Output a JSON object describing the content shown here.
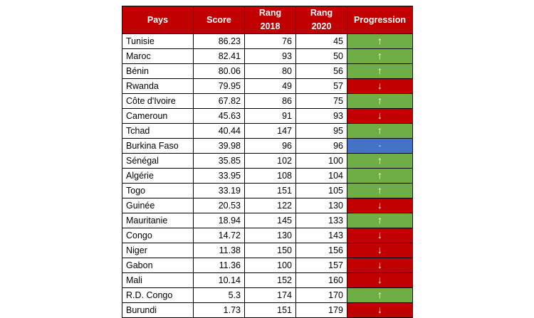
{
  "headers": [
    "Pays",
    "Score",
    "Rang 2018",
    "Rang 2020",
    "Progression"
  ],
  "rows": [
    {
      "pays": "Tunisie",
      "score": "86.23",
      "r2018": "76",
      "r2020": "45",
      "trend": "up"
    },
    {
      "pays": "Maroc",
      "score": "82.41",
      "r2018": "93",
      "r2020": "50",
      "trend": "up"
    },
    {
      "pays": "Bénin",
      "score": "80.06",
      "r2018": "80",
      "r2020": "56",
      "trend": "up"
    },
    {
      "pays": "Rwanda",
      "score": "79.95",
      "r2018": "49",
      "r2020": "57",
      "trend": "down"
    },
    {
      "pays": "Côte d'Ivoire",
      "score": "67.82",
      "r2018": "86",
      "r2020": "75",
      "trend": "up"
    },
    {
      "pays": "Cameroun",
      "score": "45.63",
      "r2018": "91",
      "r2020": "93",
      "trend": "down"
    },
    {
      "pays": "Tchad",
      "score": "40.44",
      "r2018": "147",
      "r2020": "95",
      "trend": "up"
    },
    {
      "pays": "Burkina Faso",
      "score": "39.98",
      "r2018": "96",
      "r2020": "96",
      "trend": "same"
    },
    {
      "pays": "Sénégal",
      "score": "35.85",
      "r2018": "102",
      "r2020": "100",
      "trend": "up"
    },
    {
      "pays": "Algérie",
      "score": "33.95",
      "r2018": "108",
      "r2020": "104",
      "trend": "up"
    },
    {
      "pays": "Togo",
      "score": "33.19",
      "r2018": "151",
      "r2020": "105",
      "trend": "up"
    },
    {
      "pays": "Guinée",
      "score": "20.53",
      "r2018": "122",
      "r2020": "130",
      "trend": "down"
    },
    {
      "pays": "Mauritanie",
      "score": "18.94",
      "r2018": "145",
      "r2020": "133",
      "trend": "up"
    },
    {
      "pays": "Congo",
      "score": "14.72",
      "r2018": "130",
      "r2020": "143",
      "trend": "down"
    },
    {
      "pays": "Niger",
      "score": "11.38",
      "r2018": "150",
      "r2020": "156",
      "trend": "down"
    },
    {
      "pays": "Gabon",
      "score": "11.36",
      "r2018": "100",
      "r2020": "157",
      "trend": "down"
    },
    {
      "pays": "Mali",
      "score": "10.14",
      "r2018": "152",
      "r2020": "160",
      "trend": "down"
    },
    {
      "pays": "R.D. Congo",
      "score": "5.3",
      "r2018": "174",
      "r2020": "170",
      "trend": "up"
    },
    {
      "pays": "Burundi",
      "score": "1.73",
      "r2018": "151",
      "r2020": "179",
      "trend": "down"
    }
  ],
  "symbols": {
    "up": "↑",
    "down": "↓",
    "same": "-"
  },
  "colors": {
    "header_bg": "#c00000",
    "up": "#70ad47",
    "down": "#c00000",
    "same": "#4472c4"
  }
}
